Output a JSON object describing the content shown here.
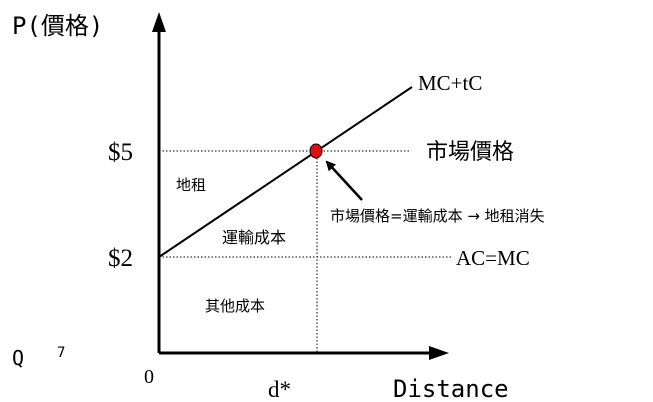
{
  "y_axis_label": "P(價格)",
  "x_axis_label": "Distance",
  "origin_label": "0",
  "distance_label": "d*",
  "price_labels": {
    "p5": "$5",
    "p2": "$2"
  },
  "curves": {
    "mc_tc": "MC+tC",
    "ac_mc": "AC=MC"
  },
  "market_price_label": "市場價格",
  "annotation": "市場價格=運輸成本 → 地租消失",
  "regions": {
    "rent": "地租",
    "transport": "運輸成本",
    "other": "其他成本"
  },
  "corner_label": "Q 7",
  "colors": {
    "point": "#e01010",
    "axis": "#000000"
  }
}
